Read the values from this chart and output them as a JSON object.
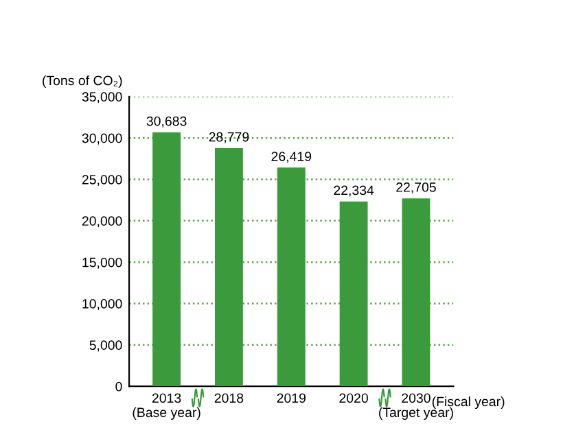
{
  "chart_data": {
    "type": "bar",
    "ylabel": "(Tons of CO₂)",
    "xlabel": "(Fiscal year)",
    "categories": [
      "2013\n(Base year)",
      "2018",
      "2019",
      "2020",
      "2030\n(Target year)"
    ],
    "values": [
      30683,
      28779,
      26419,
      22334,
      22705
    ],
    "value_labels": [
      "30,683",
      "28,779",
      "26,419",
      "22,334",
      "22,705"
    ],
    "color": "#3a9a3c",
    "ylim": [
      0,
      35000
    ],
    "yticks": [
      0,
      {
        "value": 5000,
        "label": "5,000"
      },
      {
        "value": 10000,
        "label": "10,000"
      },
      {
        "value": 15000,
        "label": "15,000"
      },
      {
        "value": 20000,
        "label": "20,000"
      },
      {
        "value": 25000,
        "label": "25,000"
      },
      {
        "value": 30000,
        "label": "30,000"
      },
      {
        "value": 35000,
        "label": "35,000"
      }
    ],
    "grid": "y"
  }
}
